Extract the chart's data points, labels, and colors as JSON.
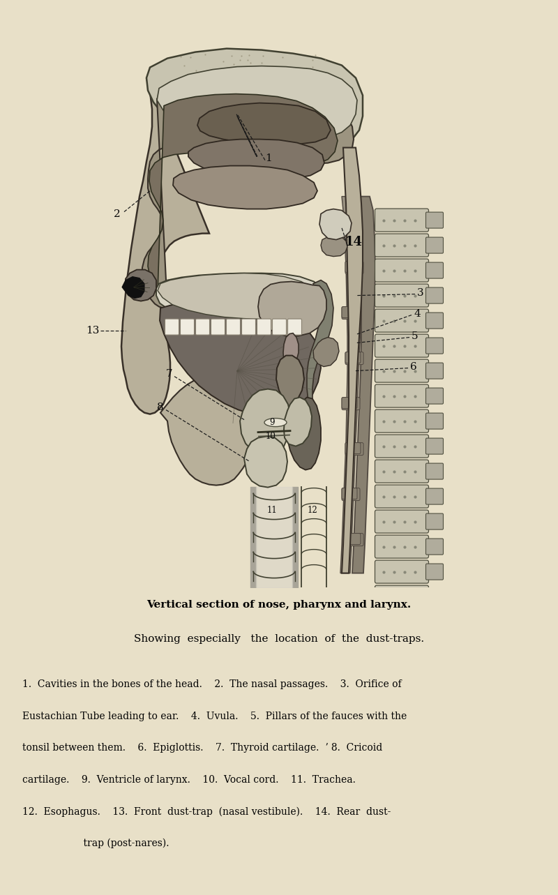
{
  "background_color": "#e8e0c8",
  "fig_width": 8.0,
  "fig_height": 12.83,
  "dpi": 100,
  "title_line1": "Vertical section of nose, pharynx and larynx.",
  "title_line2": "Showing  especially   the  location  of  the  dust-traps.",
  "caption_lines": [
    "1.  Cavities in the bones of the head.    2.  The nasal passages.    3.  Orifice of",
    "Eustachian Tube leading to ear.    4.  Uvula.    5.  Pillars of the fauces with the",
    "tonsil between them.    6.  Epiglottis.    7.  Thyroid cartilage.  ʼ 8.  Cricoid",
    "cartilage.    9.  Ventricle of larynx.    10.  Vocal cord.    11.  Trachea.",
    "12.  Esophagus.    13.  Front  dust-trap  (nasal vestibule).    14.  Rear  dust-",
    "                    trap (post-nares)."
  ],
  "title_fontsize": 11.0,
  "caption_fontsize": 10.0,
  "outline_color": "#1a1a1a",
  "dark_color": "#2a2520",
  "mid_dark": "#4a4035",
  "mid_color": "#7a6e60",
  "light_gray": "#a09880",
  "bone_color": "#c8c4b0",
  "very_light": "#ddd8c8",
  "skin_outer": "#b8b09a",
  "spine_fill": "#c0bca8",
  "spine_edge": "#505040"
}
